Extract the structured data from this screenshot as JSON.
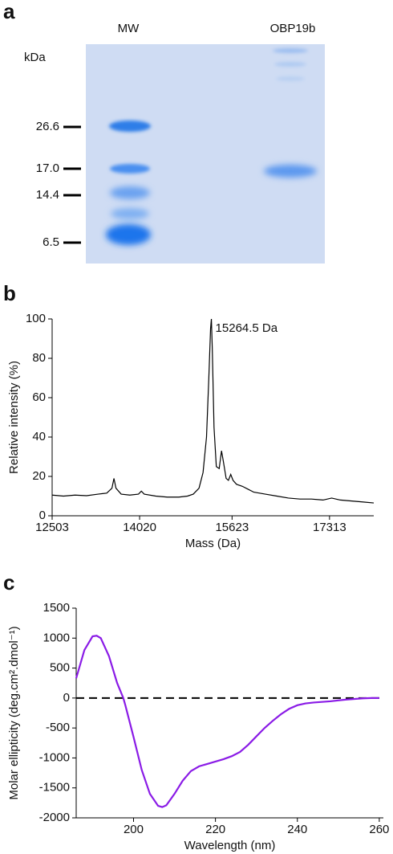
{
  "gel": {
    "panel": "a",
    "lanes": [
      "MW",
      "OBP19b"
    ],
    "unit": "kDa",
    "markers": [
      26.6,
      {
        "value": 17,
        "label": "17.0"
      },
      14.4,
      6.5
    ]
  },
  "chart_data": [
    {
      "type": "line",
      "panel": "b",
      "xlabel": "Mass (Da)",
      "ylabel": "Relative intensity (%)",
      "annotation": "15264.5 Da",
      "xlim": [
        12503,
        18080
      ],
      "xticks": [
        12503,
        14020,
        15623,
        17313
      ],
      "ylim": [
        0,
        100
      ],
      "yticks": [
        0,
        20,
        40,
        60,
        80,
        100
      ],
      "x": [
        12503,
        12700,
        12900,
        13100,
        13300,
        13450,
        13540,
        13575,
        13610,
        13700,
        13850,
        14000,
        14050,
        14100,
        14300,
        14500,
        14700,
        14850,
        14950,
        15050,
        15120,
        15180,
        15220,
        15250,
        15264.5,
        15280,
        15310,
        15350,
        15400,
        15440,
        15470,
        15520,
        15560,
        15600,
        15640,
        15700,
        15800,
        15900,
        16000,
        16200,
        16400,
        16600,
        16800,
        17000,
        17200,
        17350,
        17500,
        17700,
        17900,
        18080
      ],
      "series": [
        {
          "name": "OBP19b",
          "color": "#000000",
          "values": [
            10.5,
            10,
            10.5,
            10.2,
            11,
            11.5,
            14,
            19,
            14,
            11,
            10.5,
            11,
            12.5,
            11,
            10,
            9.5,
            9.5,
            10,
            11,
            14,
            22,
            40,
            70,
            95,
            100,
            85,
            45,
            25,
            24,
            33,
            28,
            19,
            18,
            21,
            18,
            16,
            15,
            13.5,
            12,
            11,
            10,
            9,
            8.5,
            8.5,
            8,
            9,
            8,
            7.5,
            7,
            6.5
          ]
        }
      ]
    },
    {
      "type": "line",
      "panel": "c",
      "xlabel": "Wavelength (nm)",
      "ylabel": "Molar ellipticity (deg.cm².dmol⁻¹)",
      "zero_line": true,
      "xlim": [
        186,
        261
      ],
      "xticks": [
        200,
        220,
        240,
        260
      ],
      "ylim": [
        -2000,
        1500
      ],
      "yticks": [
        -2000,
        -1500,
        -1000,
        -500,
        0,
        500,
        1000,
        1500
      ],
      "x": [
        186,
        188,
        190,
        191,
        192,
        194,
        196,
        197.5,
        198,
        200,
        202,
        204,
        206,
        207,
        208,
        210,
        212,
        214,
        216,
        218,
        220,
        222,
        224,
        226,
        228,
        230,
        232,
        234,
        236,
        238,
        240,
        242,
        244,
        246,
        248,
        250,
        252,
        254,
        256,
        258,
        260
      ],
      "series": [
        {
          "name": "OBP19b",
          "color": "#8a1be6",
          "values": [
            330,
            800,
            1030,
            1040,
            1000,
            700,
            250,
            0,
            -120,
            -650,
            -1200,
            -1600,
            -1800,
            -1820,
            -1790,
            -1600,
            -1380,
            -1220,
            -1140,
            -1100,
            -1060,
            -1020,
            -970,
            -900,
            -780,
            -640,
            -500,
            -380,
            -270,
            -180,
            -120,
            -90,
            -75,
            -65,
            -55,
            -40,
            -25,
            -15,
            -5,
            0,
            0
          ]
        }
      ]
    }
  ]
}
